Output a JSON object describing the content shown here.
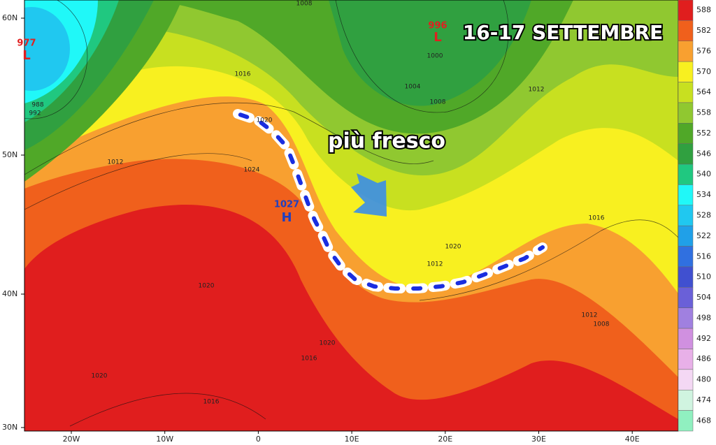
{
  "title": "16-17 SETTEMBRE",
  "annotation": "più fresco",
  "pressure_centers": [
    {
      "value": 977,
      "letter": "L"
    },
    {
      "value": 996,
      "letter": "L"
    },
    {
      "value": 1027,
      "letter": "H"
    }
  ],
  "isobar_labels": [
    1016,
    1020,
    1024,
    1012,
    988,
    992,
    1000,
    1004,
    1008,
    1012,
    1016,
    1020,
    1012,
    1012,
    1008,
    1020,
    1020,
    1016,
    1020,
    1016,
    1008
  ],
  "latitude_labels": [
    "60N",
    "50N",
    "40N",
    "30N"
  ],
  "longitude_labels": [
    "20W",
    "10W",
    "0",
    "10E",
    "20E",
    "30E",
    "40E"
  ],
  "legend": [
    {
      "value": 588,
      "color": "#e01e1e"
    },
    {
      "value": 582,
      "color": "#f0601c"
    },
    {
      "value": 576,
      "color": "#f8a030"
    },
    {
      "value": 570,
      "color": "#f8f020"
    },
    {
      "value": 564,
      "color": "#c8e020"
    },
    {
      "value": 558,
      "color": "#90c830"
    },
    {
      "value": 552,
      "color": "#50a828"
    },
    {
      "value": 546,
      "color": "#30a040"
    },
    {
      "value": 540,
      "color": "#20c880"
    },
    {
      "value": 534,
      "color": "#20f8f8"
    },
    {
      "value": 528,
      "color": "#20c8f0"
    },
    {
      "value": 522,
      "color": "#20a0e8"
    },
    {
      "value": 516,
      "color": "#3070e0"
    },
    {
      "value": 510,
      "color": "#4050d0"
    },
    {
      "value": 504,
      "color": "#6a60d8"
    },
    {
      "value": 498,
      "color": "#a080e0"
    },
    {
      "value": 492,
      "color": "#d090e0"
    },
    {
      "value": 486,
      "color": "#e8b0e8"
    },
    {
      "value": 480,
      "color": "#f4d8f4"
    },
    {
      "value": 474,
      "color": "#d0f4e0"
    },
    {
      "value": 468,
      "color": "#90f0c0"
    }
  ]
}
